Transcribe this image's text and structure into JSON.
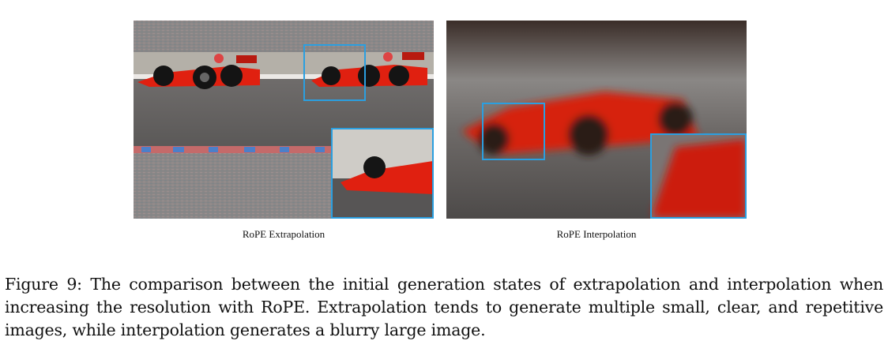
{
  "figure": {
    "panels": [
      {
        "label": "RoPE Extrapolation"
      },
      {
        "label": "RoPE Interpolation"
      }
    ],
    "caption": "Figure 9: The comparison between the initial generation states of extrapolation and interpolation when increasing the resolution with RoPE. Extrapolation tends to generate multiple small, clear, and repetitive images, while interpolation generates a blurry large image.",
    "colors": {
      "highlight_box": "#2b9fe0",
      "car_red": "#e02010"
    }
  }
}
